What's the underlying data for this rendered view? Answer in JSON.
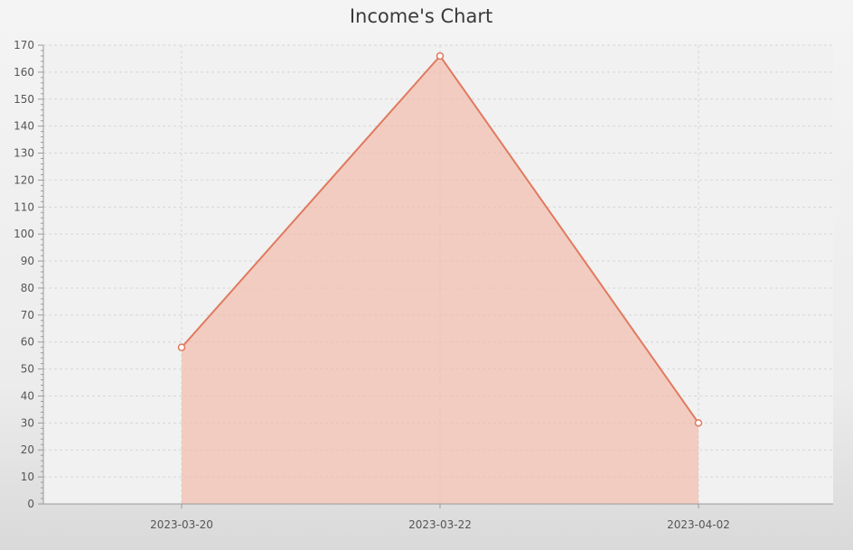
{
  "chart_data": {
    "type": "area",
    "title": "Income's Chart",
    "xlabel": "",
    "ylabel": "",
    "categories": [
      "2023-03-20",
      "2023-03-22",
      "2023-04-02"
    ],
    "series": [
      {
        "values": [
          58,
          166,
          30
        ]
      }
    ],
    "ylim": [
      0,
      170
    ],
    "ytick_step": 10,
    "minor_ytick_step": 2,
    "grid": true,
    "legend": "none",
    "colors": {
      "line": "#e07a5f",
      "fill": "#f2b9a8",
      "marker_fill": "#ffffff",
      "grid": "#d6d6d6",
      "axis": "#9a9a9a",
      "plot_background": "#f1f1f1"
    }
  }
}
